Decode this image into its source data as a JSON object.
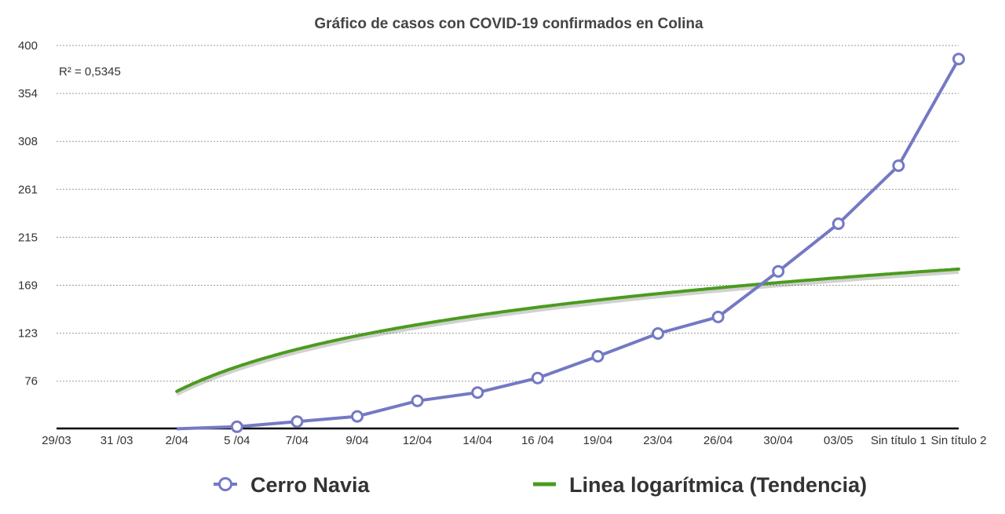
{
  "chart_data": {
    "type": "line",
    "title": "Gráfico de casos con COVID-19 confirmados en Colina",
    "categories": [
      "29/03",
      "31 /03",
      "2/04",
      "5 /04",
      "7/04",
      "9/04",
      "12/04",
      "14/04",
      "16 /04",
      "19/04",
      "23/04",
      "26/04",
      "30/04",
      "03/05",
      "Sin título 1",
      "Sin título 2"
    ],
    "y_ticks": [
      "400",
      "354",
      "308",
      "261",
      "215",
      "169",
      "123",
      "76"
    ],
    "ylim": [
      30,
      400
    ],
    "grid": true,
    "legend_position": "bottom",
    "annotation": "R² = 0,5345",
    "series": [
      {
        "name": "Cerro Navia",
        "color": "#7479c4",
        "marker": "circle-open",
        "values": [
          null,
          null,
          null,
          32,
          37,
          42,
          57,
          65,
          79,
          100,
          122,
          138,
          182,
          228,
          284,
          387
        ]
      },
      {
        "name": "Linea logarítmica (Tendencia)",
        "color": "#4b9b1f",
        "style": "trend-log",
        "trend": {
          "a": 58.6,
          "b": 25.5
        }
      }
    ]
  }
}
